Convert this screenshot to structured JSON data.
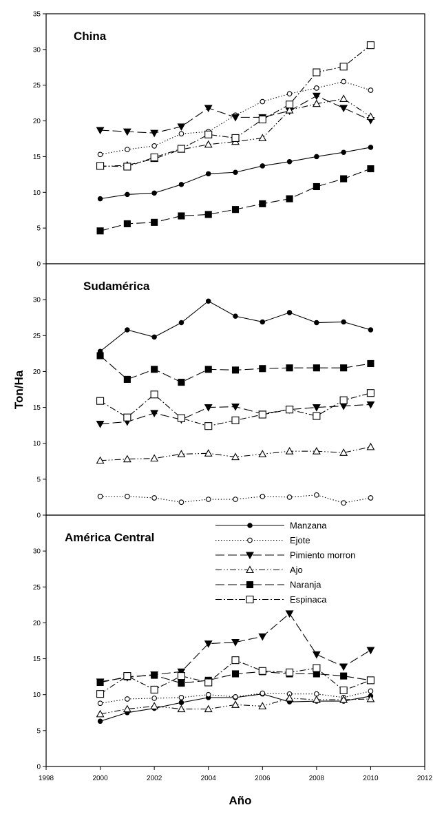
{
  "chart_data": {
    "type": "line",
    "ylabel": "Ton/Ha",
    "xlabel": "Año",
    "xlim": [
      1998,
      2012
    ],
    "xticks": [
      1998,
      2000,
      2002,
      2004,
      2006,
      2008,
      2010,
      2012
    ],
    "ylim": [
      0,
      35
    ],
    "grid": false,
    "legend": {
      "placement": "top-right of bottom panel",
      "entries": [
        {
          "label": "Manzana",
          "marker": "filled-circle",
          "dash": "solid"
        },
        {
          "label": "Ejote",
          "marker": "open-circle",
          "dash": "dotted"
        },
        {
          "label": "Pimiento morron",
          "marker": "filled-triangle-down",
          "dash": "long-dash"
        },
        {
          "label": "Ajo",
          "marker": "open-triangle-up",
          "dash": "dash-dot-dot"
        },
        {
          "label": "Naranja",
          "marker": "filled-square",
          "dash": "long-dash"
        },
        {
          "label": "Espinaca",
          "marker": "open-square",
          "dash": "dash-dot"
        }
      ]
    },
    "x": [
      2000,
      2001,
      2002,
      2003,
      2004,
      2005,
      2006,
      2007,
      2008,
      2009,
      2010
    ],
    "panels": [
      {
        "title": "China",
        "yticks": [
          0,
          5,
          10,
          15,
          20,
          25,
          30,
          35
        ],
        "series": [
          {
            "name": "Manzana",
            "values": [
              9.1,
              9.7,
              9.9,
              11.1,
              12.6,
              12.8,
              13.7,
              14.3,
              15.0,
              15.6,
              16.3
            ]
          },
          {
            "name": "Ejote",
            "values": [
              15.3,
              16.0,
              16.5,
              18.2,
              18.5,
              20.8,
              22.7,
              23.8,
              24.6,
              25.5,
              24.3
            ]
          },
          {
            "name": "Pimiento morron",
            "values": [
              18.7,
              18.5,
              18.3,
              19.2,
              21.8,
              20.5,
              20.5,
              21.4,
              23.5,
              21.8,
              20.1
            ]
          },
          {
            "name": "Ajo",
            "values": [
              13.6,
              13.8,
              14.7,
              16.0,
              16.7,
              17.1,
              17.6,
              21.5,
              22.4,
              23.1,
              20.6
            ]
          },
          {
            "name": "Naranja",
            "values": [
              4.6,
              5.6,
              5.8,
              6.7,
              6.9,
              7.6,
              8.4,
              9.1,
              10.8,
              11.9,
              13.3
            ]
          },
          {
            "name": "Espinaca",
            "values": [
              13.7,
              13.6,
              14.9,
              16.1,
              18.1,
              17.6,
              20.2,
              22.3,
              26.8,
              27.6,
              30.6
            ]
          }
        ]
      },
      {
        "title": "Sudamérica",
        "yticks": [
          0,
          5,
          10,
          15,
          20,
          25,
          30
        ],
        "series": [
          {
            "name": "Manzana",
            "values": [
              22.8,
              25.8,
              24.8,
              26.8,
              29.8,
              27.7,
              26.9,
              28.2,
              26.8,
              26.9,
              25.8
            ]
          },
          {
            "name": "Ejote",
            "values": [
              2.6,
              2.6,
              2.4,
              1.8,
              2.2,
              2.2,
              2.6,
              2.5,
              2.8,
              1.7,
              2.4
            ]
          },
          {
            "name": "Pimiento morron",
            "values": [
              12.7,
              13.0,
              14.2,
              13.3,
              15.0,
              15.1,
              14.1,
              14.7,
              15.0,
              15.2,
              15.4
            ]
          },
          {
            "name": "Ajo",
            "values": [
              7.6,
              7.8,
              7.9,
              8.5,
              8.6,
              8.1,
              8.5,
              8.9,
              8.9,
              8.7,
              9.5
            ]
          },
          {
            "name": "Naranja",
            "values": [
              22.2,
              18.9,
              20.3,
              18.5,
              20.3,
              20.2,
              20.4,
              20.5,
              20.5,
              20.5,
              21.1
            ]
          },
          {
            "name": "Espinaca",
            "values": [
              15.9,
              13.6,
              16.8,
              13.5,
              12.4,
              13.2,
              14.0,
              14.7,
              13.8,
              16.0,
              17.0
            ]
          }
        ]
      },
      {
        "title": "América Central",
        "yticks": [
          0,
          5,
          10,
          15,
          20,
          25,
          30
        ],
        "series": [
          {
            "name": "Manzana",
            "values": [
              6.3,
              7.5,
              8.1,
              8.9,
              9.6,
              9.6,
              10.1,
              9.0,
              9.1,
              9.1,
              9.8
            ]
          },
          {
            "name": "Ejote",
            "values": [
              8.8,
              9.4,
              9.5,
              9.6,
              10.0,
              9.7,
              10.2,
              10.1,
              10.1,
              9.6,
              10.5
            ]
          },
          {
            "name": "Pimiento morron",
            "values": [
              11.8,
              12.4,
              12.8,
              13.2,
              17.1,
              17.3,
              18.1,
              21.3,
              15.6,
              13.9,
              16.2
            ]
          },
          {
            "name": "Ajo",
            "values": [
              7.3,
              8.0,
              8.4,
              8.0,
              8.0,
              8.6,
              8.4,
              9.5,
              9.3,
              9.3,
              9.4
            ]
          },
          {
            "name": "Naranja",
            "values": [
              11.7,
              12.5,
              12.7,
              11.6,
              12.0,
              12.9,
              13.2,
              12.9,
              12.9,
              12.6,
              12.0
            ]
          },
          {
            "name": "Espinaca",
            "values": [
              10.1,
              12.6,
              10.7,
              12.6,
              11.7,
              14.8,
              13.3,
              13.1,
              13.7,
              10.6,
              12.0
            ]
          }
        ]
      }
    ]
  }
}
